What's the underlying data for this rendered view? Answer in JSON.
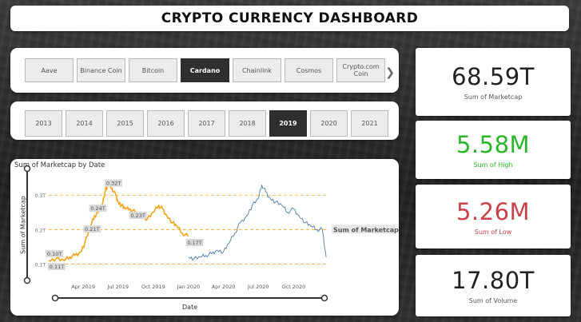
{
  "title": "CRYPTO CURRENCY DASHBOARD",
  "coins": [
    "Aave",
    "Binance Coin",
    "Bitcoin",
    "Cardano",
    "Chainlink",
    "Cosmos",
    "Crypto.com Coin"
  ],
  "selected_coin": "Cardano",
  "years": [
    "2013",
    "2014",
    "2015",
    "2016",
    "2017",
    "2018",
    "2019",
    "2020",
    "2021"
  ],
  "selected_year": "2019",
  "cards": {
    "marketcap": {
      "value": "68.59T",
      "label": "Sum of Marketcap",
      "color": "#222222"
    },
    "high": {
      "value": "5.58M",
      "label": "Sum of High",
      "color": "#2bb52b"
    },
    "low": {
      "value": "5.26M",
      "label": "Sum of Low",
      "color": "#c9424a"
    },
    "volume": {
      "value": "17.80T",
      "label": "Sum of Volume",
      "color": "#222222"
    }
  },
  "chart_data": {
    "type": "line",
    "title": "Sum of Marketcap by Date",
    "xlabel": "Date",
    "ylabel": "Sum of Marketcap",
    "x_ticks": [
      "Apr 2019",
      "Jul 2019",
      "Oct 2019",
      "Jan 2020",
      "Apr 2020",
      "Jul 2020",
      "Oct 2020"
    ],
    "y_ticks": [
      "0.1T",
      "0.2T",
      "0.3T"
    ],
    "ylim": [
      0.08,
      0.34
    ],
    "series_label": "Sum of Marketcap",
    "series": [
      {
        "name": "2019",
        "color": "#f5a41a",
        "x": [
          "2019-01-01",
          "2019-01-20",
          "2019-02-10",
          "2019-02-25",
          "2019-03-10",
          "2019-03-25",
          "2019-04-05",
          "2019-04-20",
          "2019-05-01",
          "2019-05-10",
          "2019-05-20",
          "2019-05-28",
          "2019-06-05",
          "2019-06-15",
          "2019-06-25",
          "2019-07-01",
          "2019-07-10",
          "2019-07-20",
          "2019-08-01",
          "2019-08-15",
          "2019-09-01",
          "2019-09-15",
          "2019-10-01",
          "2019-10-15",
          "2019-10-25",
          "2019-11-05",
          "2019-11-20",
          "2019-12-01",
          "2019-12-15",
          "2019-12-31"
        ],
        "y": [
          0.11,
          0.115,
          0.11,
          0.12,
          0.125,
          0.135,
          0.16,
          0.21,
          0.24,
          0.25,
          0.27,
          0.31,
          0.33,
          0.32,
          0.3,
          0.28,
          0.27,
          0.26,
          0.26,
          0.25,
          0.24,
          0.23,
          0.25,
          0.27,
          0.26,
          0.24,
          0.22,
          0.21,
          0.19,
          0.18
        ]
      },
      {
        "name": "2020",
        "color": "#4f7ba3",
        "x": [
          "2020-01-01",
          "2020-01-15",
          "2020-02-01",
          "2020-02-15",
          "2020-03-01",
          "2020-03-15",
          "2020-04-01",
          "2020-04-15",
          "2020-05-01",
          "2020-05-15",
          "2020-06-01",
          "2020-06-15",
          "2020-07-01",
          "2020-07-10",
          "2020-07-20",
          "2020-08-01",
          "2020-08-15",
          "2020-09-01",
          "2020-09-15",
          "2020-10-01",
          "2020-10-15",
          "2020-11-01",
          "2020-11-15",
          "2020-12-01",
          "2020-12-15",
          "2020-12-25"
        ],
        "y": [
          0.12,
          0.115,
          0.12,
          0.125,
          0.13,
          0.14,
          0.135,
          0.16,
          0.19,
          0.22,
          0.24,
          0.27,
          0.29,
          0.33,
          0.31,
          0.29,
          0.28,
          0.27,
          0.25,
          0.26,
          0.24,
          0.22,
          0.21,
          0.2,
          0.2,
          0.12
        ]
      }
    ],
    "point_labels": [
      "0.10T",
      "0.11T",
      "0.21T",
      "0.24T",
      "0.32T",
      "0.23T",
      "0.17T"
    ]
  }
}
